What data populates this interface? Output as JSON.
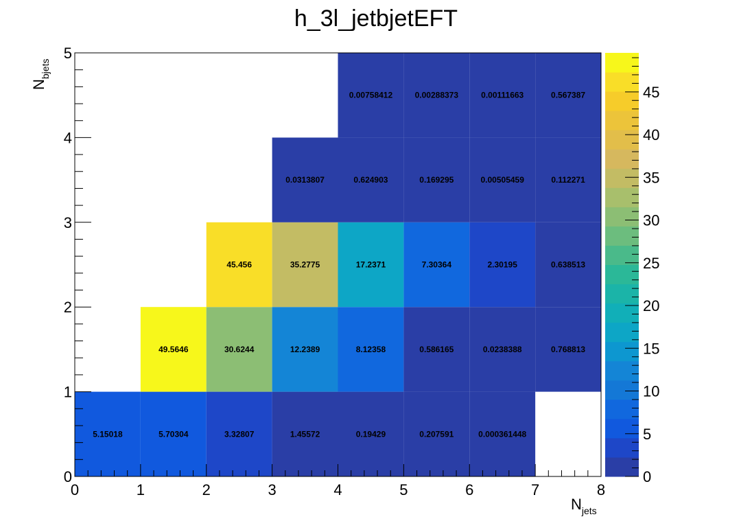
{
  "chart_data": {
    "type": "heatmap",
    "title": "h_3l_jetbjetEFT",
    "xlabel": {
      "main": "N",
      "sub": "jets"
    },
    "ylabel": {
      "main": "N",
      "sub": "bjets"
    },
    "xlim": [
      0,
      8
    ],
    "ylim": [
      0,
      5
    ],
    "x_ticks": [
      "0",
      "1",
      "2",
      "3",
      "4",
      "5",
      "6",
      "7",
      "8"
    ],
    "y_ticks": [
      "0",
      "1",
      "2",
      "3",
      "4",
      "5"
    ],
    "zlim": [
      0,
      49.5646
    ],
    "z_ticks": [
      "0",
      "5",
      "10",
      "15",
      "20",
      "25",
      "30",
      "35",
      "40",
      "45"
    ],
    "palette": [
      "#2a3ea6",
      "#1e47c8",
      "#1159de",
      "#1168de",
      "#1478d6",
      "#1485d6",
      "#0d97d0",
      "#0da6c6",
      "#11afb8",
      "#1bb4a8",
      "#2bb898",
      "#4aba8a",
      "#6cbd7e",
      "#8cbe74",
      "#a8bf6c",
      "#c3bc64",
      "#d6b85e",
      "#e2be4a",
      "#ecc43a",
      "#f6cc2a",
      "#f9de28",
      "#f7f71b"
    ],
    "cells": [
      {
        "x": 0,
        "y": 0,
        "value": 5.15018,
        "label": "5.15018"
      },
      {
        "x": 1,
        "y": 0,
        "value": 5.70304,
        "label": "5.70304"
      },
      {
        "x": 2,
        "y": 0,
        "value": 3.32807,
        "label": "3.32807"
      },
      {
        "x": 3,
        "y": 0,
        "value": 1.45572,
        "label": "1.45572"
      },
      {
        "x": 4,
        "y": 0,
        "value": 0.19429,
        "label": "0.19429"
      },
      {
        "x": 5,
        "y": 0,
        "value": 0.207591,
        "label": "0.207591"
      },
      {
        "x": 6,
        "y": 0,
        "value": 0.000361448,
        "label": "0.000361448"
      },
      {
        "x": 1,
        "y": 1,
        "value": 49.5646,
        "label": "49.5646"
      },
      {
        "x": 2,
        "y": 1,
        "value": 30.6244,
        "label": "30.6244"
      },
      {
        "x": 3,
        "y": 1,
        "value": 12.2389,
        "label": "12.2389"
      },
      {
        "x": 4,
        "y": 1,
        "value": 8.12358,
        "label": "8.12358"
      },
      {
        "x": 5,
        "y": 1,
        "value": 0.586165,
        "label": "0.586165"
      },
      {
        "x": 6,
        "y": 1,
        "value": 0.0238388,
        "label": "0.0238388"
      },
      {
        "x": 7,
        "y": 1,
        "value": 0.768813,
        "label": "0.768813"
      },
      {
        "x": 2,
        "y": 2,
        "value": 45.456,
        "label": "45.456"
      },
      {
        "x": 3,
        "y": 2,
        "value": 35.2775,
        "label": "35.2775"
      },
      {
        "x": 4,
        "y": 2,
        "value": 17.2371,
        "label": "17.2371"
      },
      {
        "x": 5,
        "y": 2,
        "value": 7.30364,
        "label": "7.30364"
      },
      {
        "x": 6,
        "y": 2,
        "value": 2.30195,
        "label": "2.30195"
      },
      {
        "x": 7,
        "y": 2,
        "value": 0.638513,
        "label": "0.638513"
      },
      {
        "x": 3,
        "y": 3,
        "value": 0.0313807,
        "label": "0.0313807"
      },
      {
        "x": 4,
        "y": 3,
        "value": 0.624903,
        "label": "0.624903"
      },
      {
        "x": 5,
        "y": 3,
        "value": 0.169295,
        "label": "0.169295"
      },
      {
        "x": 6,
        "y": 3,
        "value": 0.00505459,
        "label": "0.00505459"
      },
      {
        "x": 7,
        "y": 3,
        "value": 0.112271,
        "label": "0.112271"
      },
      {
        "x": 4,
        "y": 4,
        "value": 0.00758412,
        "label": "0.00758412"
      },
      {
        "x": 5,
        "y": 4,
        "value": 0.00288373,
        "label": "0.00288373"
      },
      {
        "x": 6,
        "y": 4,
        "value": 0.00111663,
        "label": "0.00111663"
      },
      {
        "x": 7,
        "y": 4,
        "value": 0.567387,
        "label": "0.567387"
      }
    ]
  }
}
